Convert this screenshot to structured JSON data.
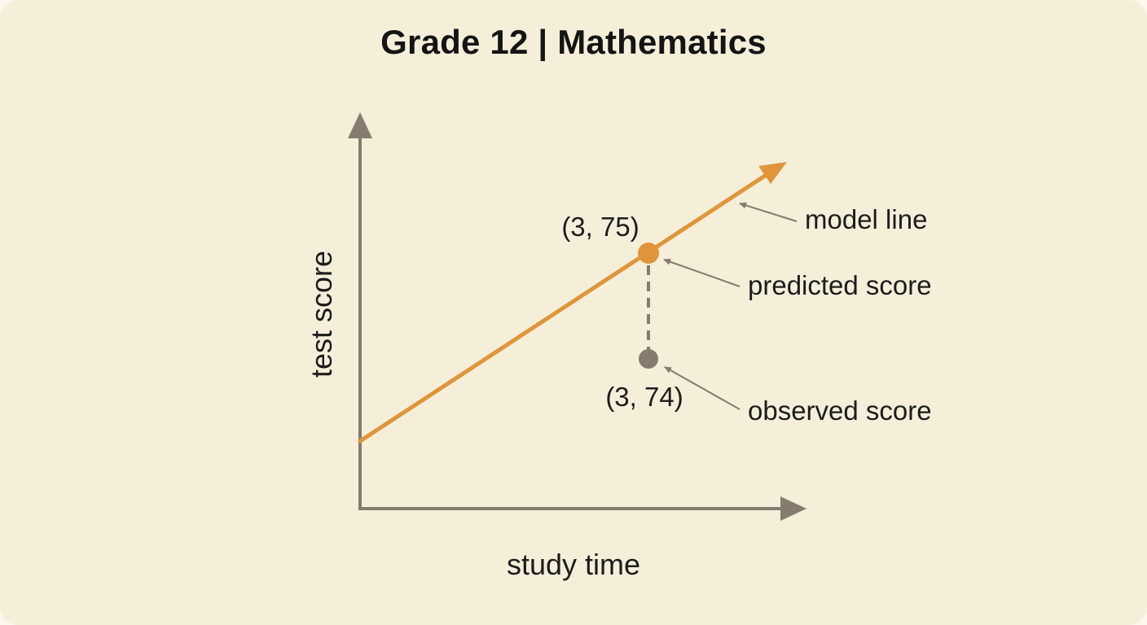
{
  "title": "Grade 12 | Mathematics",
  "axes": {
    "x_label": "study time",
    "y_label": "test score"
  },
  "points": {
    "predicted": {
      "label": "(3, 75)",
      "x": 3,
      "y": 75
    },
    "observed": {
      "label": "(3, 74)",
      "x": 3,
      "y": 74
    }
  },
  "callouts": {
    "model_line": "model line",
    "predicted_score": "predicted score",
    "observed_score": "observed score"
  },
  "colors": {
    "model_line": "#e0953a",
    "axis": "#857b6e",
    "observed_point": "#857b6e",
    "background": "#f5efda"
  }
}
